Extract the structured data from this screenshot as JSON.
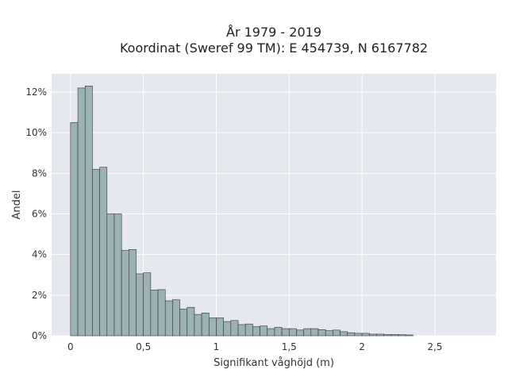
{
  "chart_data": {
    "type": "bar",
    "title_line1": "År 1979 - 2019",
    "title_line2": "Koordinat (Sweref 99 TM): E 454739, N 6167782",
    "xlabel": "Signifikant våghöjd (m)",
    "ylabel": "Andel",
    "x_ticks": [
      {
        "value": 0,
        "label": "0"
      },
      {
        "value": 0.5,
        "label": "0,5"
      },
      {
        "value": 1,
        "label": "1"
      },
      {
        "value": 1.5,
        "label": "1,5"
      },
      {
        "value": 2,
        "label": "2"
      },
      {
        "value": 2.5,
        "label": "2,5"
      }
    ],
    "y_ticks": [
      {
        "value": 0,
        "label": "0%"
      },
      {
        "value": 2,
        "label": "2%"
      },
      {
        "value": 4,
        "label": "4%"
      },
      {
        "value": 6,
        "label": "6%"
      },
      {
        "value": 8,
        "label": "8%"
      },
      {
        "value": 10,
        "label": "10%"
      },
      {
        "value": 12,
        "label": "12%"
      }
    ],
    "xlim": [
      -0.13,
      2.92
    ],
    "ylim": [
      0,
      12.9
    ],
    "bin_width": 0.05,
    "bin_start": 0.0,
    "values": [
      10.5,
      12.2,
      12.3,
      8.2,
      8.3,
      6.0,
      6.0,
      4.2,
      4.25,
      3.05,
      3.1,
      2.25,
      2.27,
      1.72,
      1.77,
      1.32,
      1.4,
      1.05,
      1.12,
      0.88,
      0.88,
      0.7,
      0.75,
      0.55,
      0.58,
      0.45,
      0.48,
      0.35,
      0.42,
      0.35,
      0.35,
      0.28,
      0.35,
      0.35,
      0.3,
      0.25,
      0.28,
      0.2,
      0.15,
      0.12,
      0.12,
      0.08,
      0.08,
      0.06,
      0.06,
      0.05,
      0.04
    ],
    "grid": true,
    "colors": {
      "plot_background": "#e6e8f0",
      "grid": "#ffffff",
      "bar_fill": "#9bb3b3",
      "bar_stroke": "#333333"
    }
  }
}
